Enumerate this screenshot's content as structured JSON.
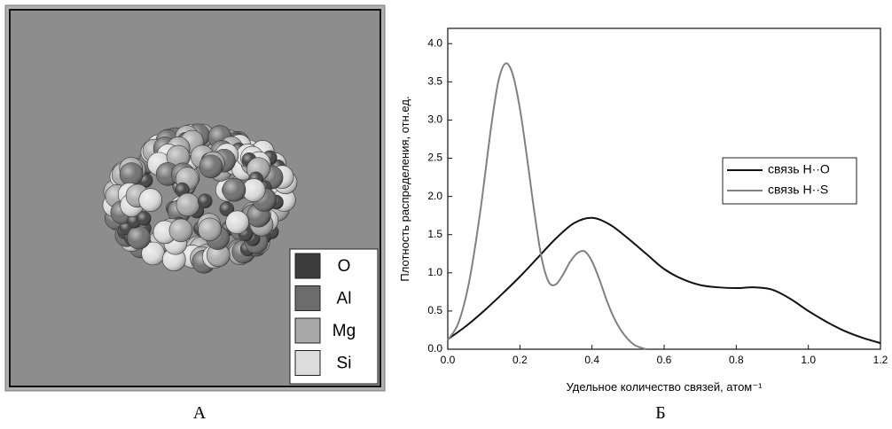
{
  "panel_a": {
    "legend": [
      {
        "label": "O",
        "color": "#3c3c3c"
      },
      {
        "label": "Al",
        "color": "#6c6c6c"
      },
      {
        "label": "Mg",
        "color": "#a9a9a9"
      },
      {
        "label": "Si",
        "color": "#dcdcdc"
      }
    ],
    "caption": "А"
  },
  "chart_data": {
    "type": "line",
    "caption": "Б",
    "x_label": "Удельное количество связей, атом⁻¹",
    "y_label": "Плотность распределения, отн.ед.",
    "xlim": [
      0,
      1.2
    ],
    "ylim": [
      0,
      4.2
    ],
    "xticks": [
      {
        "value": 0,
        "label": "0.0"
      },
      0.2,
      0.4,
      0.6,
      0.8,
      {
        "value": 1,
        "label": "1.0"
      },
      1.2
    ],
    "yticks": [
      {
        "value": 0,
        "label": "0.0"
      },
      0.5,
      {
        "value": 1,
        "label": "1.0"
      },
      1.5,
      {
        "value": 2,
        "label": "2.0"
      },
      2.5,
      {
        "value": 3,
        "label": "3.0"
      },
      3.5,
      {
        "value": 4,
        "label": "4.0"
      }
    ],
    "legend_position": "right",
    "series": [
      {
        "name": "связь H··O",
        "color": "#111111",
        "x": [
          0,
          0.05,
          0.1,
          0.15,
          0.2,
          0.25,
          0.3,
          0.35,
          0.4,
          0.45,
          0.5,
          0.55,
          0.6,
          0.65,
          0.7,
          0.75,
          0.8,
          0.85,
          0.9,
          0.95,
          1.0,
          1.05,
          1.1,
          1.15,
          1.2
        ],
        "values": [
          0.13,
          0.3,
          0.5,
          0.72,
          0.95,
          1.2,
          1.45,
          1.65,
          1.72,
          1.63,
          1.45,
          1.25,
          1.05,
          0.92,
          0.84,
          0.81,
          0.8,
          0.81,
          0.78,
          0.66,
          0.5,
          0.36,
          0.24,
          0.15,
          0.08
        ]
      },
      {
        "name": "связь H··S",
        "color": "#808080",
        "x": [
          0,
          0.03,
          0.06,
          0.09,
          0.12,
          0.14,
          0.16,
          0.18,
          0.2,
          0.22,
          0.24,
          0.26,
          0.28,
          0.3,
          0.32,
          0.34,
          0.36,
          0.38,
          0.4,
          0.42,
          0.44,
          0.46,
          0.48,
          0.5,
          0.52,
          0.55
        ],
        "values": [
          0.12,
          0.35,
          0.9,
          1.8,
          2.9,
          3.5,
          3.74,
          3.6,
          3.15,
          2.5,
          1.8,
          1.2,
          0.88,
          0.85,
          0.98,
          1.15,
          1.26,
          1.28,
          1.15,
          0.92,
          0.65,
          0.42,
          0.25,
          0.13,
          0.05,
          0
        ]
      }
    ]
  }
}
